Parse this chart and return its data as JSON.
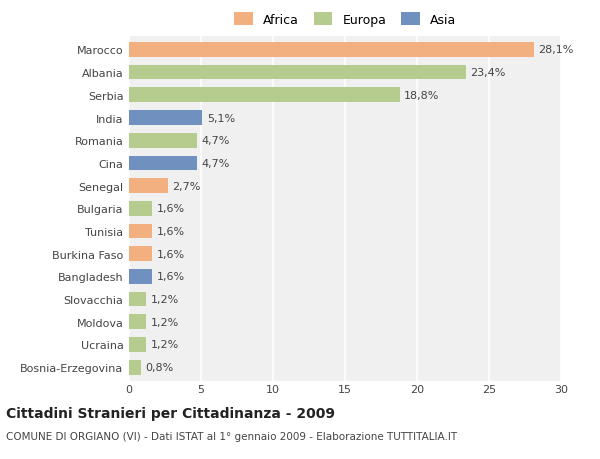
{
  "countries": [
    "Marocco",
    "Albania",
    "Serbia",
    "India",
    "Romania",
    "Cina",
    "Senegal",
    "Bulgaria",
    "Tunisia",
    "Burkina Faso",
    "Bangladesh",
    "Slovacchia",
    "Moldova",
    "Ucraina",
    "Bosnia-Erzegovina"
  ],
  "values": [
    28.1,
    23.4,
    18.8,
    5.1,
    4.7,
    4.7,
    2.7,
    1.6,
    1.6,
    1.6,
    1.6,
    1.2,
    1.2,
    1.2,
    0.8
  ],
  "labels": [
    "28,1%",
    "23,4%",
    "18,8%",
    "5,1%",
    "4,7%",
    "4,7%",
    "2,7%",
    "1,6%",
    "1,6%",
    "1,6%",
    "1,6%",
    "1,2%",
    "1,2%",
    "1,2%",
    "0,8%"
  ],
  "continents": [
    "Africa",
    "Europa",
    "Europa",
    "Asia",
    "Europa",
    "Asia",
    "Africa",
    "Europa",
    "Africa",
    "Africa",
    "Asia",
    "Europa",
    "Europa",
    "Europa",
    "Europa"
  ],
  "colors": {
    "Africa": "#F2B080",
    "Europa": "#B5CC8E",
    "Asia": "#7090C0"
  },
  "legend_colors": {
    "Africa": "#F2B080",
    "Europa": "#B5CC8E",
    "Asia": "#7090C0"
  },
  "title": "Cittadini Stranieri per Cittadinanza - 2009",
  "subtitle": "COMUNE DI ORGIANO (VI) - Dati ISTAT al 1° gennaio 2009 - Elaborazione TUTTITALIA.IT",
  "xlim": [
    0,
    30
  ],
  "xticks": [
    0,
    5,
    10,
    15,
    20,
    25,
    30
  ],
  "background_color": "#ffffff",
  "plot_bg_color": "#f0f0f0",
  "grid_color": "#ffffff",
  "bar_height": 0.65,
  "title_fontsize": 10,
  "subtitle_fontsize": 7.5,
  "tick_fontsize": 8,
  "label_fontsize": 8
}
